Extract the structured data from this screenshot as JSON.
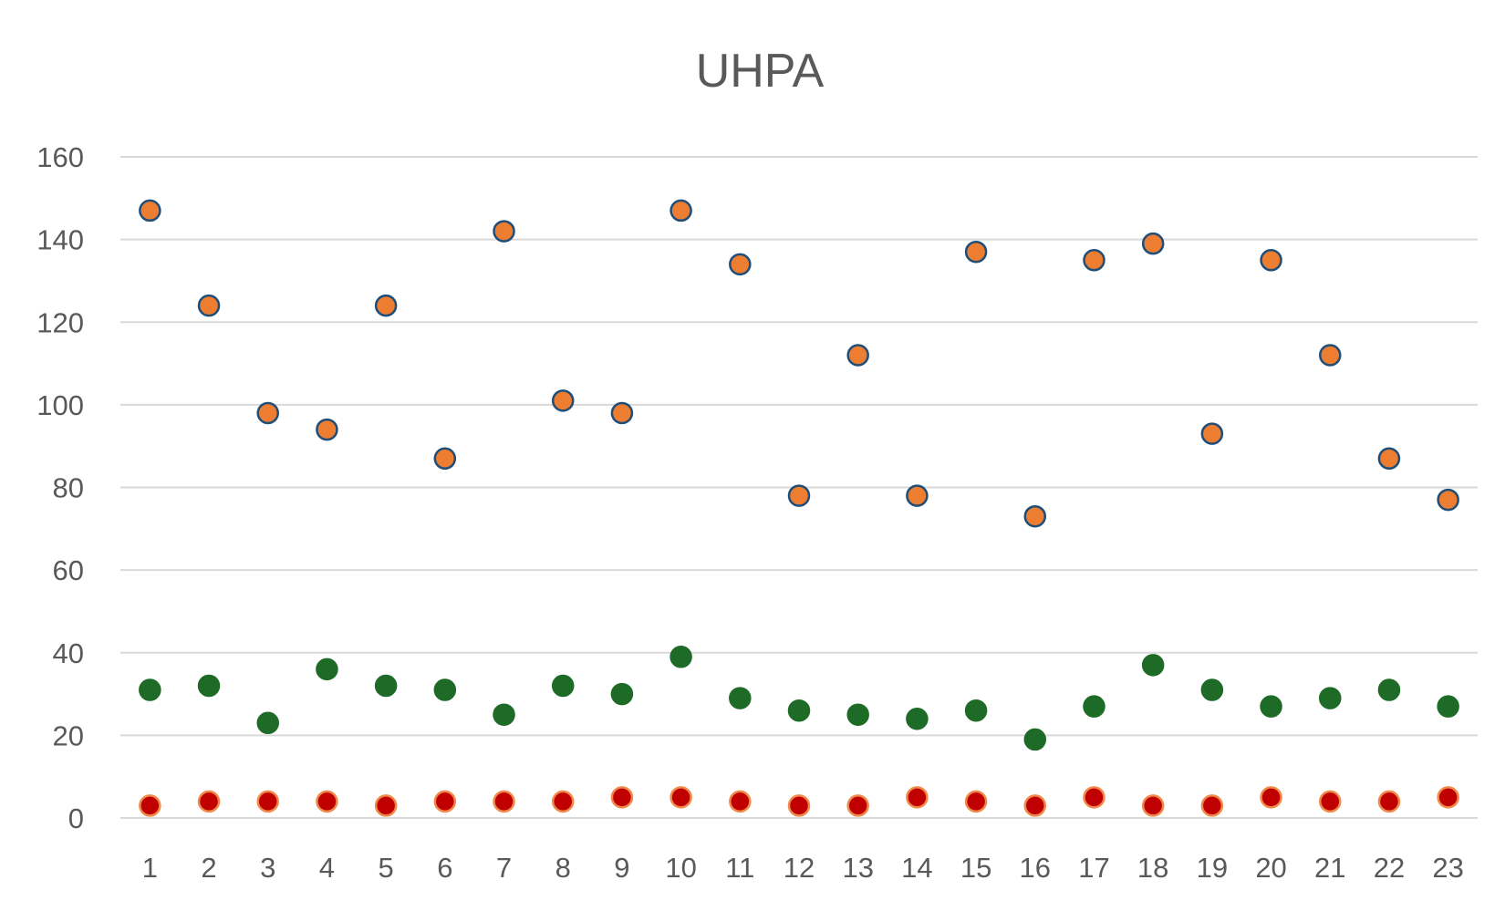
{
  "chart_data": {
    "type": "scatter",
    "title": "UHPA",
    "xlabel": "",
    "ylabel": "",
    "x": [
      1,
      2,
      3,
      4,
      5,
      6,
      7,
      8,
      9,
      10,
      11,
      12,
      13,
      14,
      15,
      16,
      17,
      18,
      19,
      20,
      21,
      22,
      23
    ],
    "xlim": [
      0.5,
      23.5
    ],
    "ylim": [
      0,
      160
    ],
    "yticks": [
      0,
      20,
      40,
      60,
      80,
      100,
      120,
      140,
      160
    ],
    "grid": true,
    "legend": "none",
    "series": [
      {
        "color": "#ed7d31",
        "edge_color": "#1f4e79",
        "values": [
          147,
          124,
          98,
          94,
          124,
          87,
          142,
          101,
          98,
          147,
          134,
          78,
          112,
          78,
          137,
          73,
          135,
          139,
          93,
          135,
          112,
          87,
          77
        ]
      },
      {
        "color": "#1e6b27",
        "edge_color": "#1e6b27",
        "values": [
          31,
          32,
          23,
          36,
          32,
          31,
          25,
          32,
          30,
          39,
          29,
          26,
          25,
          24,
          26,
          19,
          27,
          37,
          31,
          27,
          29,
          31,
          27
        ]
      },
      {
        "color": "#c00000",
        "edge_color": "#f08a4b",
        "values": [
          3,
          4,
          4,
          4,
          3,
          4,
          4,
          4,
          5,
          5,
          4,
          3,
          3,
          5,
          4,
          3,
          5,
          3,
          3,
          5,
          4,
          4,
          5
        ]
      }
    ]
  }
}
